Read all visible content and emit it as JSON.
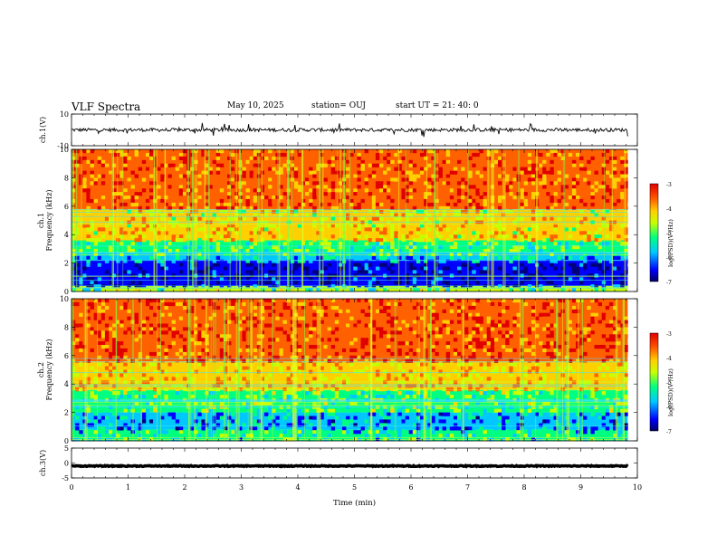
{
  "header": {
    "title": "VLF Spectra",
    "date": "May 10, 2025",
    "station": "station= OUJ",
    "start": "start  UT  =   21: 40: 0"
  },
  "chart_data": [
    {
      "type": "line",
      "panel": "waveform-ch1",
      "ylabel": "ch.1(V)",
      "ylim": [
        -10,
        10
      ],
      "yticks": [
        "10",
        "-10"
      ],
      "x_range_min": [
        0,
        9.83
      ],
      "baseline": 0
    },
    {
      "type": "heatmap",
      "panel": "spectrogram-ch1",
      "ylabel_lines": [
        "ch.1",
        "Frequency  (kHz)"
      ],
      "ylim": [
        0,
        10
      ],
      "yticks": [
        "0",
        "2",
        "4",
        "6",
        "8",
        "10"
      ],
      "x_range_min": [
        0,
        9.83
      ],
      "color_scale": {
        "label": "log(PSD)(V²/Hz)",
        "range": [
          -7,
          -3
        ],
        "ticks": [
          "-3",
          "-4",
          "-5",
          "-6",
          "-7"
        ],
        "colormap": [
          "#00007a",
          "#0000ff",
          "#00c8ff",
          "#00ff80",
          "#c8ff00",
          "#ffd000",
          "#ff6000",
          "#e00000"
        ]
      },
      "bands_khz": [
        {
          "from": 0.0,
          "to": 0.4,
          "level": -5.0
        },
        {
          "from": 0.4,
          "to": 2.2,
          "level": -6.5
        },
        {
          "from": 2.2,
          "to": 2.7,
          "level": -5.8
        },
        {
          "from": 2.7,
          "to": 3.6,
          "level": -5.2
        },
        {
          "from": 3.6,
          "to": 5.8,
          "level": -4.4
        },
        {
          "from": 5.8,
          "to": 10.0,
          "level": -3.7
        }
      ]
    },
    {
      "type": "heatmap",
      "panel": "spectrogram-ch2",
      "ylabel_lines": [
        "ch.2",
        "Frequency  (kHz)"
      ],
      "ylim": [
        0,
        10
      ],
      "yticks": [
        "0",
        "2",
        "4",
        "6",
        "8",
        "10"
      ],
      "x_range_min": [
        0,
        9.83
      ],
      "color_scale": {
        "label": "log(PSD)(V²/Hz)",
        "range": [
          -7,
          -3
        ],
        "ticks": [
          "-3",
          "-4",
          "-5",
          "-6",
          "-7"
        ],
        "colormap": [
          "#00007a",
          "#0000ff",
          "#00c8ff",
          "#00ff80",
          "#c8ff00",
          "#ffd000",
          "#ff6000",
          "#e00000"
        ]
      },
      "bands_khz": [
        {
          "from": 0.0,
          "to": 0.8,
          "level": -5.4
        },
        {
          "from": 0.8,
          "to": 2.0,
          "level": -5.9
        },
        {
          "from": 2.0,
          "to": 3.6,
          "level": -5.1
        },
        {
          "from": 3.6,
          "to": 5.6,
          "level": -4.3
        },
        {
          "from": 5.6,
          "to": 10.0,
          "level": -3.6
        }
      ]
    },
    {
      "type": "line",
      "panel": "waveform-ch3",
      "ylabel": "ch.3(V)",
      "ylim": [
        -5,
        5
      ],
      "yticks": [
        "5",
        "0",
        "-5"
      ],
      "x_range_min": [
        0,
        9.83
      ],
      "baseline": -1.0
    }
  ],
  "x_axis": {
    "label": "Time  (min)",
    "range": [
      0,
      10
    ],
    "ticks": [
      "0",
      "1",
      "2",
      "3",
      "4",
      "5",
      "6",
      "7",
      "8",
      "9",
      "10"
    ]
  }
}
